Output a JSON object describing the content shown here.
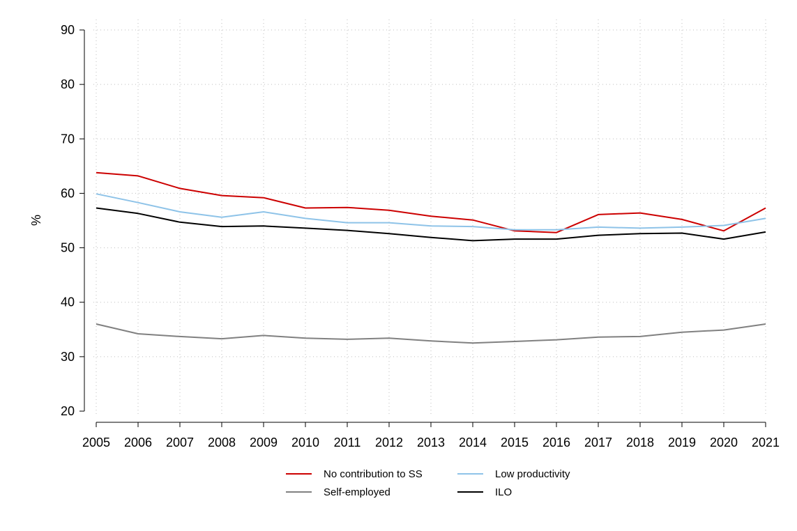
{
  "chart_data": {
    "type": "line",
    "title": "",
    "xlabel": "",
    "ylabel": "%",
    "ylim": [
      20,
      90
    ],
    "yticks": [
      20,
      30,
      40,
      50,
      60,
      70,
      80,
      90
    ],
    "x": [
      "2005",
      "2006",
      "2007",
      "2008",
      "2009",
      "2010",
      "2011",
      "2012",
      "2013",
      "2014",
      "2015",
      "2016",
      "2017",
      "2018",
      "2019",
      "2020",
      "2021"
    ],
    "grid": "dotted, both axes",
    "legend_position": "bottom",
    "series": [
      {
        "name": "No contribution to SS",
        "color": "#cc0000",
        "values": [
          63.8,
          63.2,
          60.9,
          59.6,
          59.2,
          57.3,
          57.4,
          56.9,
          55.8,
          55.1,
          53.1,
          52.8,
          56.1,
          56.4,
          55.2,
          53.1,
          57.3
        ]
      },
      {
        "name": "Low productivity",
        "color": "#8ec3e8",
        "values": [
          59.9,
          58.3,
          56.6,
          55.6,
          56.6,
          55.4,
          54.6,
          54.6,
          54.0,
          53.9,
          53.3,
          53.3,
          53.8,
          53.6,
          53.8,
          54.1,
          55.4
        ]
      },
      {
        "name": "Self-employed",
        "color": "#808080",
        "values": [
          36.0,
          34.2,
          33.7,
          33.3,
          33.9,
          33.4,
          33.2,
          33.4,
          32.9,
          32.5,
          32.8,
          33.1,
          33.6,
          33.7,
          34.5,
          34.9,
          36.0
        ]
      },
      {
        "name": "ILO",
        "color": "#000000",
        "values": [
          57.3,
          56.3,
          54.7,
          53.9,
          54.0,
          53.6,
          53.2,
          52.6,
          51.9,
          51.3,
          51.6,
          51.6,
          52.3,
          52.6,
          52.7,
          51.6,
          52.9
        ]
      }
    ]
  }
}
